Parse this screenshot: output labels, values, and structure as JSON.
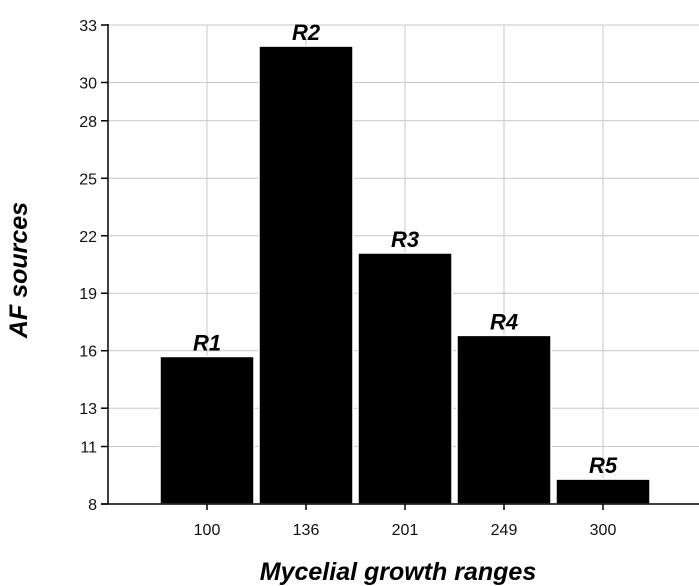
{
  "chart_data": {
    "type": "bar",
    "xlabel": "Mycelial growth ranges",
    "ylabel": "AF sources",
    "categories": [
      "100",
      "136",
      "201",
      "249",
      "300"
    ],
    "values": [
      15.7,
      31.9,
      21.1,
      16.8,
      9.3
    ],
    "bar_labels": [
      "R1",
      "R2",
      "R3",
      "R4",
      "R5"
    ],
    "y_ticks": [
      "8",
      "11",
      "13",
      "16",
      "19",
      "22",
      "25",
      "28",
      "30",
      "33"
    ],
    "ylim": [
      8,
      33
    ],
    "grid": true,
    "legend": "none",
    "colors": {
      "bar": "#000000",
      "bar_edge": "#ffffff",
      "grid": "#c8c8c8",
      "axis": "#000000"
    }
  }
}
